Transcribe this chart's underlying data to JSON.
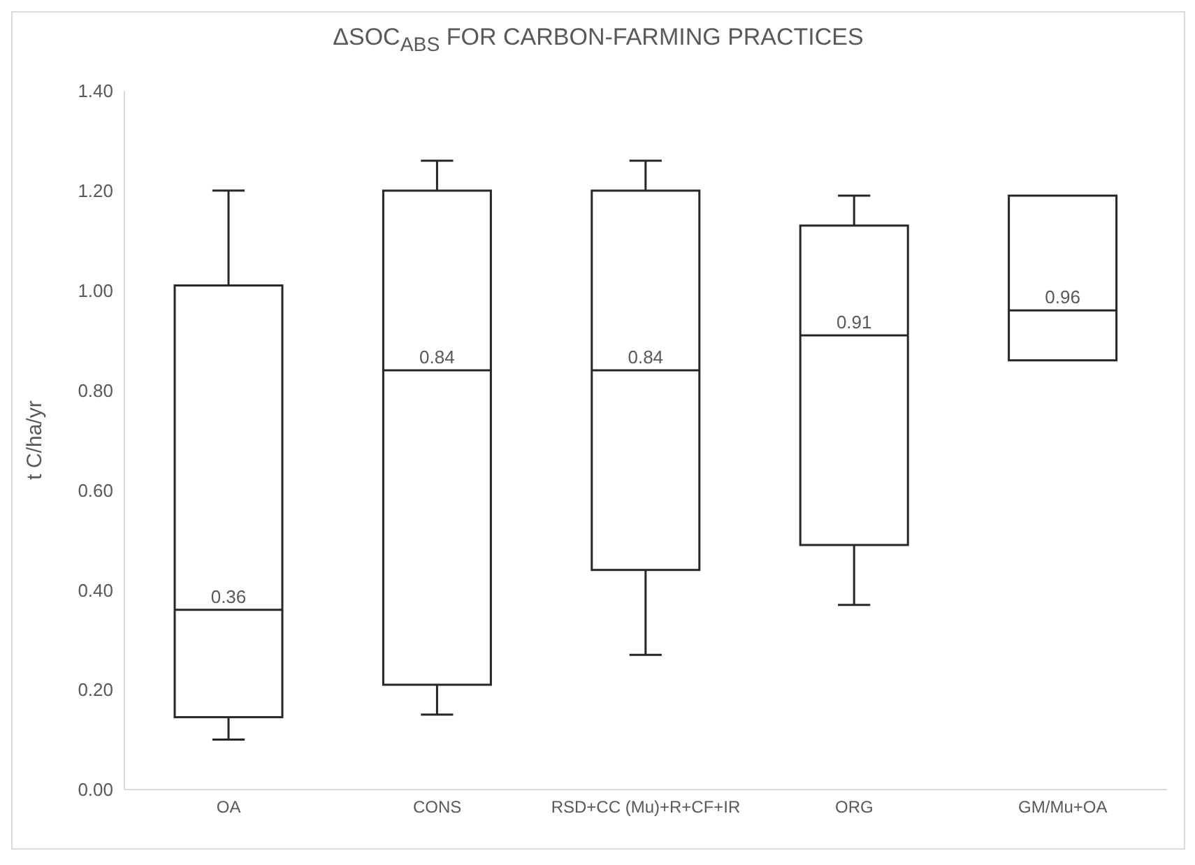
{
  "chart_data": {
    "type": "box",
    "title": "ΔSOC$_{ABS}$ FOR CARBON-FARMING PRACTICES",
    "ylabel": "t C/ha/yr",
    "categories": [
      "OA",
      "CONS",
      "RSD+CC (Mu)+R+CF+IR",
      "ORG",
      "GM/Mu+OA"
    ],
    "boxes": [
      {
        "low": 0.1,
        "q1": 0.145,
        "median": 0.36,
        "q3": 1.01,
        "high": 1.2
      },
      {
        "low": 0.15,
        "q1": 0.21,
        "median": 0.84,
        "q3": 1.2,
        "high": 1.26
      },
      {
        "low": 0.27,
        "q1": 0.44,
        "median": 0.84,
        "q3": 1.2,
        "high": 1.26
      },
      {
        "low": 0.37,
        "q1": 0.49,
        "median": 0.91,
        "q3": 1.13,
        "high": 1.19
      },
      {
        "low": 0.86,
        "q1": 0.86,
        "median": 0.96,
        "q3": 1.19,
        "high": 1.19
      }
    ],
    "annotations": [
      {
        "text": "0.36",
        "x": "OA",
        "y": 0.36
      },
      {
        "text": "0.84",
        "x": "CONS",
        "y": 0.84
      },
      {
        "text": "0.84",
        "x": "RSD+CC (Mu)+R+CF+IR",
        "y": 0.84
      },
      {
        "text": "0.91",
        "x": "ORG",
        "y": 0.91
      },
      {
        "text": "0.96",
        "x": "GM/Mu+OA",
        "y": 0.96
      }
    ],
    "ylim": [
      0,
      1.4
    ],
    "yticks": [
      {
        "value": 0,
        "label": "0.00"
      },
      {
        "value": 0.2,
        "label": "0.20"
      },
      {
        "value": 0.4,
        "label": "0.40"
      },
      {
        "value": 0.6,
        "label": "0.60"
      },
      {
        "value": 0.8,
        "label": "0.80"
      },
      {
        "value": 1.0,
        "label": "1.00"
      },
      {
        "value": 1.2,
        "label": "1.20"
      },
      {
        "value": 1.4,
        "label": "1.40"
      }
    ],
    "grid": false
  }
}
